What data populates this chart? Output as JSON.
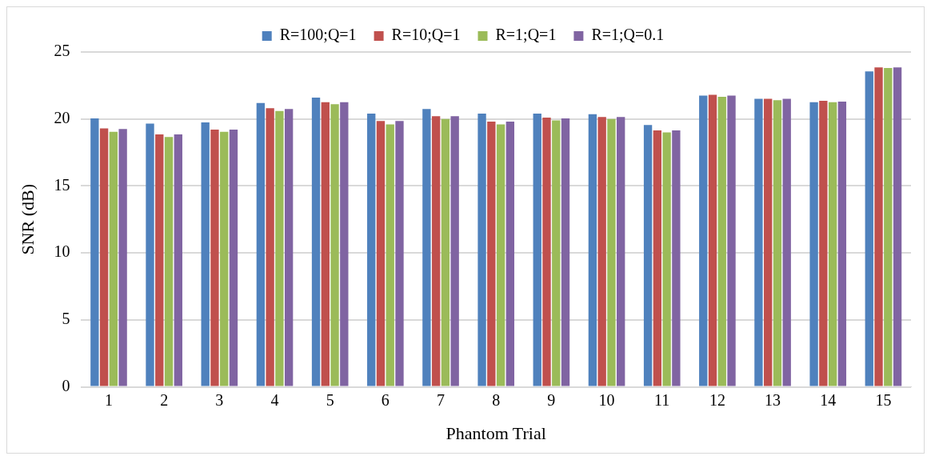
{
  "chart_data": {
    "type": "bar",
    "xlabel": "Phantom Trial",
    "ylabel": "SNR (dB)",
    "categories": [
      "1",
      "2",
      "3",
      "4",
      "5",
      "6",
      "7",
      "8",
      "9",
      "10",
      "11",
      "12",
      "13",
      "14",
      "15"
    ],
    "series": [
      {
        "name": "R=100;Q=1",
        "color": "#4f81bd",
        "values": [
          20.05,
          19.65,
          19.75,
          21.2,
          21.6,
          20.4,
          20.75,
          20.4,
          20.4,
          20.35,
          19.55,
          21.75,
          21.5,
          21.25,
          23.55
        ]
      },
      {
        "name": "R=10;Q=1",
        "color": "#c0504d",
        "values": [
          19.3,
          18.85,
          19.2,
          20.8,
          21.25,
          19.85,
          20.2,
          19.8,
          20.1,
          20.15,
          19.15,
          21.8,
          21.5,
          21.35,
          23.85
        ]
      },
      {
        "name": "R=1;Q=1",
        "color": "#9bbb59",
        "values": [
          19.05,
          18.65,
          19.05,
          20.6,
          21.1,
          19.6,
          20.0,
          19.6,
          19.9,
          20.0,
          19.0,
          21.65,
          21.4,
          21.25,
          23.8
        ]
      },
      {
        "name": "R=1;Q=0.1",
        "color": "#8064a2",
        "values": [
          19.25,
          18.85,
          19.2,
          20.75,
          21.25,
          19.85,
          20.2,
          19.8,
          20.05,
          20.15,
          19.15,
          21.75,
          21.5,
          21.3,
          23.85
        ]
      }
    ],
    "ylim": [
      0,
      25
    ],
    "yticks": [
      0,
      5,
      10,
      15,
      20,
      25
    ],
    "grid": "y",
    "legend": "top"
  }
}
